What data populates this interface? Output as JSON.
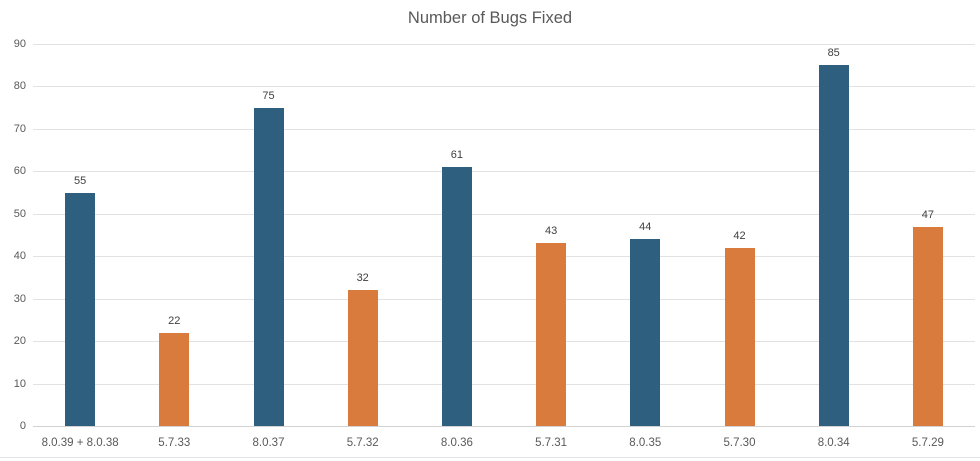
{
  "chart_data": {
    "type": "bar",
    "title": "Number of Bugs Fixed",
    "categories": [
      "8.0.39 + 8.0.38",
      "5.7.33",
      "8.0.37",
      "5.7.32",
      "8.0.36",
      "5.7.31",
      "8.0.35",
      "5.7.30",
      "8.0.34",
      "5.7.29"
    ],
    "values": [
      55,
      22,
      75,
      32,
      61,
      43,
      44,
      42,
      85,
      47
    ],
    "bar_colors": [
      "#2f5f7e",
      "#d97b3d",
      "#2f5f7e",
      "#d97b3d",
      "#2f5f7e",
      "#d97b3d",
      "#2f5f7e",
      "#d97b3d",
      "#2f5f7e",
      "#d97b3d"
    ],
    "palette": {
      "series_8_0": "#2f5f7e",
      "series_5_7": "#d97b3d"
    },
    "xlabel": "",
    "ylabel": "",
    "ylim": [
      0,
      90
    ],
    "ytick_interval": 10,
    "yticks": [
      0,
      10,
      20,
      30,
      40,
      50,
      60,
      70,
      80,
      90
    ],
    "grid": true,
    "data_labels": true,
    "legend": "none",
    "text_colors": {
      "title": "#595959",
      "axis_ticks": "#595959",
      "data_labels": "#404040"
    },
    "gridline_color": "#e2e2e2"
  }
}
